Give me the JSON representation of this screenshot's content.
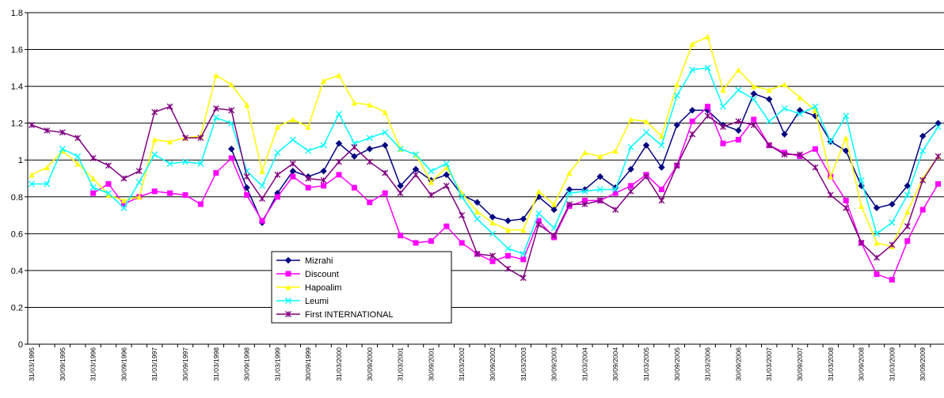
{
  "chart_data": {
    "type": "line",
    "categories": [
      "31/03/1995",
      null,
      "30/09/1995",
      null,
      "31/03/1996",
      null,
      "30/09/1996",
      null,
      "31/03/1997",
      null,
      "30/09/1997",
      null,
      "31/03/1998",
      null,
      "30/09/1998",
      null,
      "31/03/1999",
      null,
      "30/09/1999",
      null,
      "31/03/2000",
      null,
      "30/09/2000",
      null,
      "31/03/2001",
      null,
      "30/09/2001",
      null,
      "31/03/2002",
      null,
      "30/09/2002",
      null,
      "31/03/2003",
      null,
      "30/09/2003",
      null,
      "31/03/2004",
      null,
      "30/09/2004",
      null,
      "31/03/2005",
      null,
      "30/09/2005",
      null,
      "31/03/2006",
      null,
      "30/09/2006",
      null,
      "31/03/2007",
      null,
      "30/09/2007",
      null,
      "31/03/2008",
      null,
      "30/09/2008",
      null,
      "31/03/2009",
      null,
      "30/09/2009",
      null
    ],
    "series": [
      {
        "name": "Mizrahi",
        "color": "#000080",
        "marker": "diamond",
        "values": [
          null,
          null,
          null,
          null,
          null,
          null,
          null,
          null,
          null,
          null,
          null,
          null,
          null,
          1.06,
          0.85,
          0.66,
          0.82,
          0.94,
          0.91,
          0.94,
          1.09,
          1.02,
          1.06,
          1.08,
          0.86,
          0.95,
          0.89,
          0.92,
          0.81,
          0.77,
          0.69,
          0.67,
          0.68,
          0.8,
          0.73,
          0.84,
          0.84,
          0.91,
          0.85,
          0.95,
          1.08,
          0.96,
          1.19,
          1.27,
          1.27,
          1.19,
          1.16,
          1.36,
          1.33,
          1.14,
          1.27,
          1.24,
          1.1,
          1.05,
          0.86,
          0.74,
          0.76,
          0.86,
          1.13,
          1.2
        ]
      },
      {
        "name": "Discount",
        "color": "#ff00ff",
        "marker": "square",
        "values": [
          null,
          null,
          null,
          null,
          0.82,
          0.87,
          0.76,
          0.8,
          0.83,
          0.82,
          0.81,
          0.76,
          0.93,
          1.01,
          0.81,
          0.67,
          0.8,
          0.91,
          0.85,
          0.86,
          0.92,
          0.85,
          0.77,
          0.82,
          0.59,
          0.55,
          0.56,
          0.64,
          0.55,
          0.49,
          0.45,
          0.48,
          0.46,
          0.67,
          0.58,
          0.75,
          0.78,
          0.78,
          0.82,
          0.86,
          0.92,
          0.84,
          0.97,
          1.21,
          1.29,
          1.09,
          1.11,
          1.22,
          1.08,
          1.04,
          1.02,
          1.06,
          0.91,
          0.78,
          0.55,
          0.38,
          0.35,
          0.56,
          0.73,
          0.87
        ]
      },
      {
        "name": "Hapoalim",
        "color": "#ffff00",
        "marker": "triangle",
        "values": [
          0.92,
          0.96,
          1.05,
          0.98,
          0.9,
          0.81,
          0.78,
          0.8,
          1.11,
          1.1,
          1.12,
          1.13,
          1.46,
          1.41,
          1.3,
          0.94,
          1.18,
          1.22,
          1.18,
          1.43,
          1.46,
          1.31,
          1.3,
          1.26,
          1.06,
          1.03,
          0.88,
          0.96,
          0.82,
          0.72,
          0.66,
          0.62,
          0.62,
          0.83,
          0.76,
          0.93,
          1.04,
          1.02,
          1.05,
          1.22,
          1.21,
          1.13,
          1.41,
          1.63,
          1.67,
          1.38,
          1.49,
          1.4,
          1.38,
          1.41,
          1.34,
          1.27,
          0.91,
          1.12,
          0.75,
          0.55,
          0.53,
          0.72,
          0.9,
          1.02
        ]
      },
      {
        "name": "Leumi",
        "color": "#00ffff",
        "marker": "x",
        "values": [
          0.87,
          0.87,
          1.06,
          1.02,
          0.85,
          0.82,
          0.74,
          0.88,
          1.03,
          0.98,
          0.99,
          0.98,
          1.23,
          1.2,
          0.94,
          0.86,
          1.04,
          1.11,
          1.05,
          1.08,
          1.25,
          1.09,
          1.12,
          1.15,
          1.06,
          1.03,
          0.94,
          0.98,
          0.8,
          0.68,
          0.6,
          0.52,
          0.49,
          0.71,
          0.63,
          0.82,
          0.83,
          0.84,
          0.84,
          1.07,
          1.15,
          1.08,
          1.35,
          1.49,
          1.5,
          1.29,
          1.38,
          1.33,
          1.21,
          1.28,
          1.25,
          1.29,
          1.1,
          1.24,
          0.89,
          0.6,
          0.66,
          0.81,
          1.05,
          1.18
        ]
      },
      {
        "name": "First INTERNATIONAL",
        "color": "#800080",
        "marker": "star",
        "values": [
          1.19,
          1.16,
          1.15,
          1.12,
          1.01,
          0.97,
          0.9,
          0.94,
          1.26,
          1.29,
          1.12,
          1.12,
          1.28,
          1.27,
          0.91,
          0.79,
          0.92,
          0.98,
          0.9,
          0.89,
          0.99,
          1.07,
          0.99,
          0.93,
          0.82,
          0.92,
          0.81,
          0.86,
          0.7,
          0.49,
          0.48,
          0.41,
          0.36,
          0.65,
          0.59,
          0.76,
          0.76,
          0.78,
          0.73,
          0.83,
          0.91,
          0.78,
          0.97,
          1.14,
          1.24,
          1.18,
          1.21,
          1.19,
          1.08,
          1.03,
          1.03,
          0.96,
          0.81,
          0.74,
          0.55,
          0.47,
          0.54,
          0.64,
          0.89,
          1.02
        ]
      }
    ],
    "ylim": [
      0,
      1.8
    ],
    "yticks": [
      0,
      0.2,
      0.4,
      0.6,
      0.8,
      1,
      1.2,
      1.4,
      1.6,
      1.8
    ],
    "grid": true,
    "legend_position": "lower-center"
  }
}
